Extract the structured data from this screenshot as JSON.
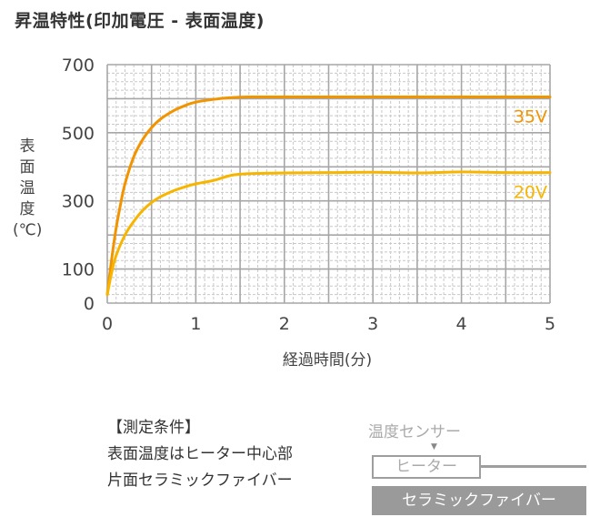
{
  "title": "昇温特性(印加電圧 - 表面温度)",
  "chart_data": {
    "type": "line",
    "title": "昇温特性(印加電圧 - 表面温度)",
    "xlabel": "経過時間(分)",
    "ylabel": "表面温度(℃)",
    "ylabel_chars": [
      "表",
      "面",
      "温",
      "度",
      "(℃)"
    ],
    "xlim": [
      0,
      5
    ],
    "ylim": [
      0,
      700
    ],
    "xticks": [
      0,
      1,
      2,
      3,
      4,
      5
    ],
    "yticks": [
      0,
      100,
      300,
      500,
      700
    ],
    "grid": true,
    "legend_position": "inline-right",
    "series": [
      {
        "name": "35V",
        "color": "#f29400",
        "x": [
          0,
          0.05,
          0.1,
          0.15,
          0.2,
          0.3,
          0.4,
          0.5,
          0.6,
          0.75,
          0.9,
          1.0,
          1.2,
          1.4,
          1.6,
          2.0,
          2.5,
          3.0,
          3.5,
          4.0,
          4.5,
          5.0
        ],
        "values": [
          25,
          130,
          220,
          290,
          350,
          430,
          480,
          515,
          540,
          565,
          582,
          590,
          598,
          603,
          605,
          605,
          605,
          605,
          605,
          605,
          605,
          605
        ]
      },
      {
        "name": "20V",
        "color": "#f8b500",
        "x": [
          0,
          0.05,
          0.1,
          0.2,
          0.3,
          0.4,
          0.5,
          0.6,
          0.75,
          0.9,
          1.0,
          1.2,
          1.4,
          1.6,
          2.0,
          2.5,
          3.0,
          3.5,
          4.0,
          4.5,
          5.0
        ],
        "values": [
          25,
          90,
          140,
          200,
          240,
          272,
          295,
          312,
          330,
          343,
          350,
          360,
          375,
          380,
          382,
          383,
          384,
          382,
          385,
          383,
          383
        ]
      }
    ]
  },
  "conditions": {
    "header": "【測定条件】",
    "lines": [
      "表面温度はヒーター中心部",
      "片面セラミックファイバー"
    ]
  },
  "diagram": {
    "sensor_label": "温度センサー",
    "arrow": "▼",
    "heater_label": "ヒーター",
    "fiber_label": "セラミックファイバー"
  }
}
